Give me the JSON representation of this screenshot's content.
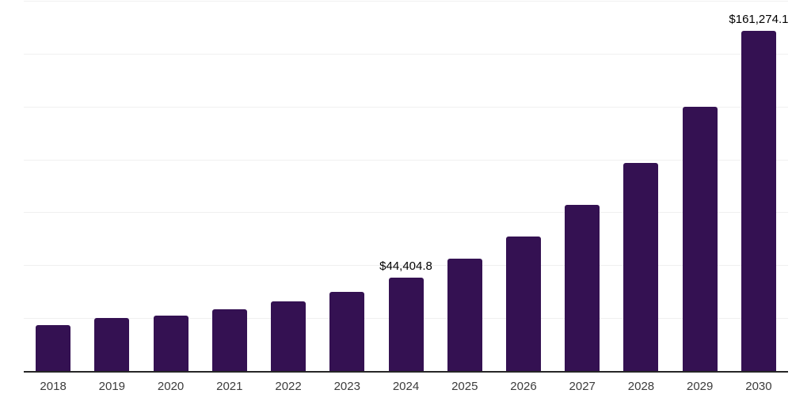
{
  "chart_data": {
    "type": "bar",
    "title": "",
    "xlabel": "",
    "ylabel": "",
    "categories": [
      "2018",
      "2019",
      "2020",
      "2021",
      "2022",
      "2023",
      "2024",
      "2025",
      "2026",
      "2027",
      "2028",
      "2029",
      "2030"
    ],
    "values": [
      21900,
      25300,
      26400,
      29400,
      33100,
      37600,
      44404.8,
      53300,
      63800,
      78800,
      98600,
      125200,
      161274.1
    ],
    "value_labels": [
      null,
      null,
      null,
      null,
      null,
      null,
      "$44,404.8",
      null,
      null,
      null,
      null,
      null,
      "$161,274.1"
    ],
    "ylim": [
      0,
      175000
    ],
    "gridline_interval": 25000,
    "grid": "horizontal",
    "legend_position": "none",
    "colors": {
      "bar": "#341152",
      "gridline": "#f0f0f0",
      "axis_line": "#262626",
      "value_label_text": "#000000",
      "tick_label_text": "#3c3c3c",
      "background": "#ffffff"
    }
  }
}
